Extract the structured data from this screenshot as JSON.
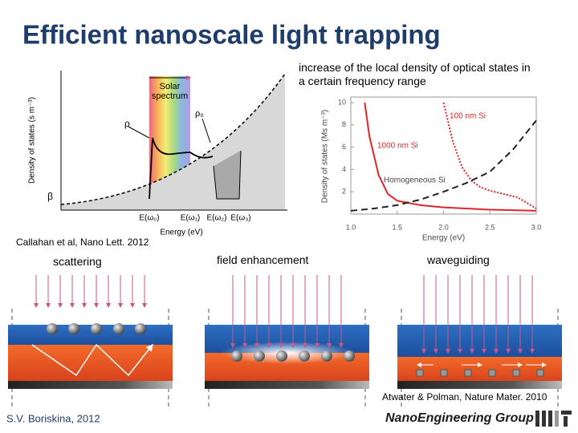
{
  "title": "Efficient nanoscale light trapping",
  "annotation": "increase of the local density of optical states in a certain frequency range",
  "left_plot": {
    "ylabel": "Density of states (s m⁻³)",
    "xlabel": "Energy (eV)",
    "band_label": "Solar spectrum",
    "rho": "ρ",
    "rho0": "ρ₀",
    "beta": "β",
    "energies": [
      "E(ω₀)",
      "E(ω₁)",
      "E(ω₂)",
      "E(ω₃)"
    ]
  },
  "citation_left": "Callahan et al, Nano Lett. 2012",
  "chart_data": {
    "type": "line",
    "xlabel": "Energy (eV)",
    "ylabel": "Density of states (Ms m⁻³)",
    "xlim": [
      1,
      3
    ],
    "ylim": [
      0,
      10.5
    ],
    "xticks": [
      {
        "value": 1,
        "label": "1.0"
      },
      {
        "value": 1.5,
        "label": "1.5"
      },
      {
        "value": 2,
        "label": "2.0"
      },
      {
        "value": 2.5,
        "label": "2.5"
      },
      {
        "value": 3,
        "label": "3.0"
      }
    ],
    "yticks": [
      2,
      4,
      6,
      8,
      10
    ],
    "series": [
      {
        "name": "1000 nm Si",
        "color": "#e0252a",
        "dash": "solid",
        "x": [
          1.15,
          1.2,
          1.3,
          1.4,
          1.5,
          1.75,
          2.0,
          2.5,
          3.0
        ],
        "values": [
          10,
          7,
          3.5,
          1.8,
          1.2,
          0.8,
          0.6,
          0.4,
          0.3
        ]
      },
      {
        "name": "100 nm Si",
        "color": "#e0252a",
        "dash": "dotted",
        "x": [
          2.0,
          2.1,
          2.2,
          2.3,
          2.4,
          2.5,
          2.6,
          2.7,
          2.8,
          2.9,
          3.0
        ],
        "values": [
          10,
          6.5,
          4.2,
          3.0,
          2.4,
          2.1,
          1.9,
          1.7,
          1.5,
          1.0,
          0.5
        ]
      },
      {
        "name": "Homogeneous Si",
        "color": "#222222",
        "dash": "dashed",
        "x": [
          1.0,
          1.25,
          1.5,
          1.75,
          2.0,
          2.25,
          2.5,
          2.75,
          3.0
        ],
        "values": [
          0.3,
          0.5,
          0.8,
          1.3,
          2.0,
          2.8,
          3.8,
          5.8,
          8.4
        ]
      }
    ]
  },
  "bottom": {
    "labels": [
      "scattering",
      "field enhancement",
      "waveguiding"
    ],
    "citation": "Atwater & Polman, Nature Mater. 2010"
  },
  "footer": {
    "author": "S.V. Boriskina, 2012",
    "group": "NanoEngineering Group"
  }
}
